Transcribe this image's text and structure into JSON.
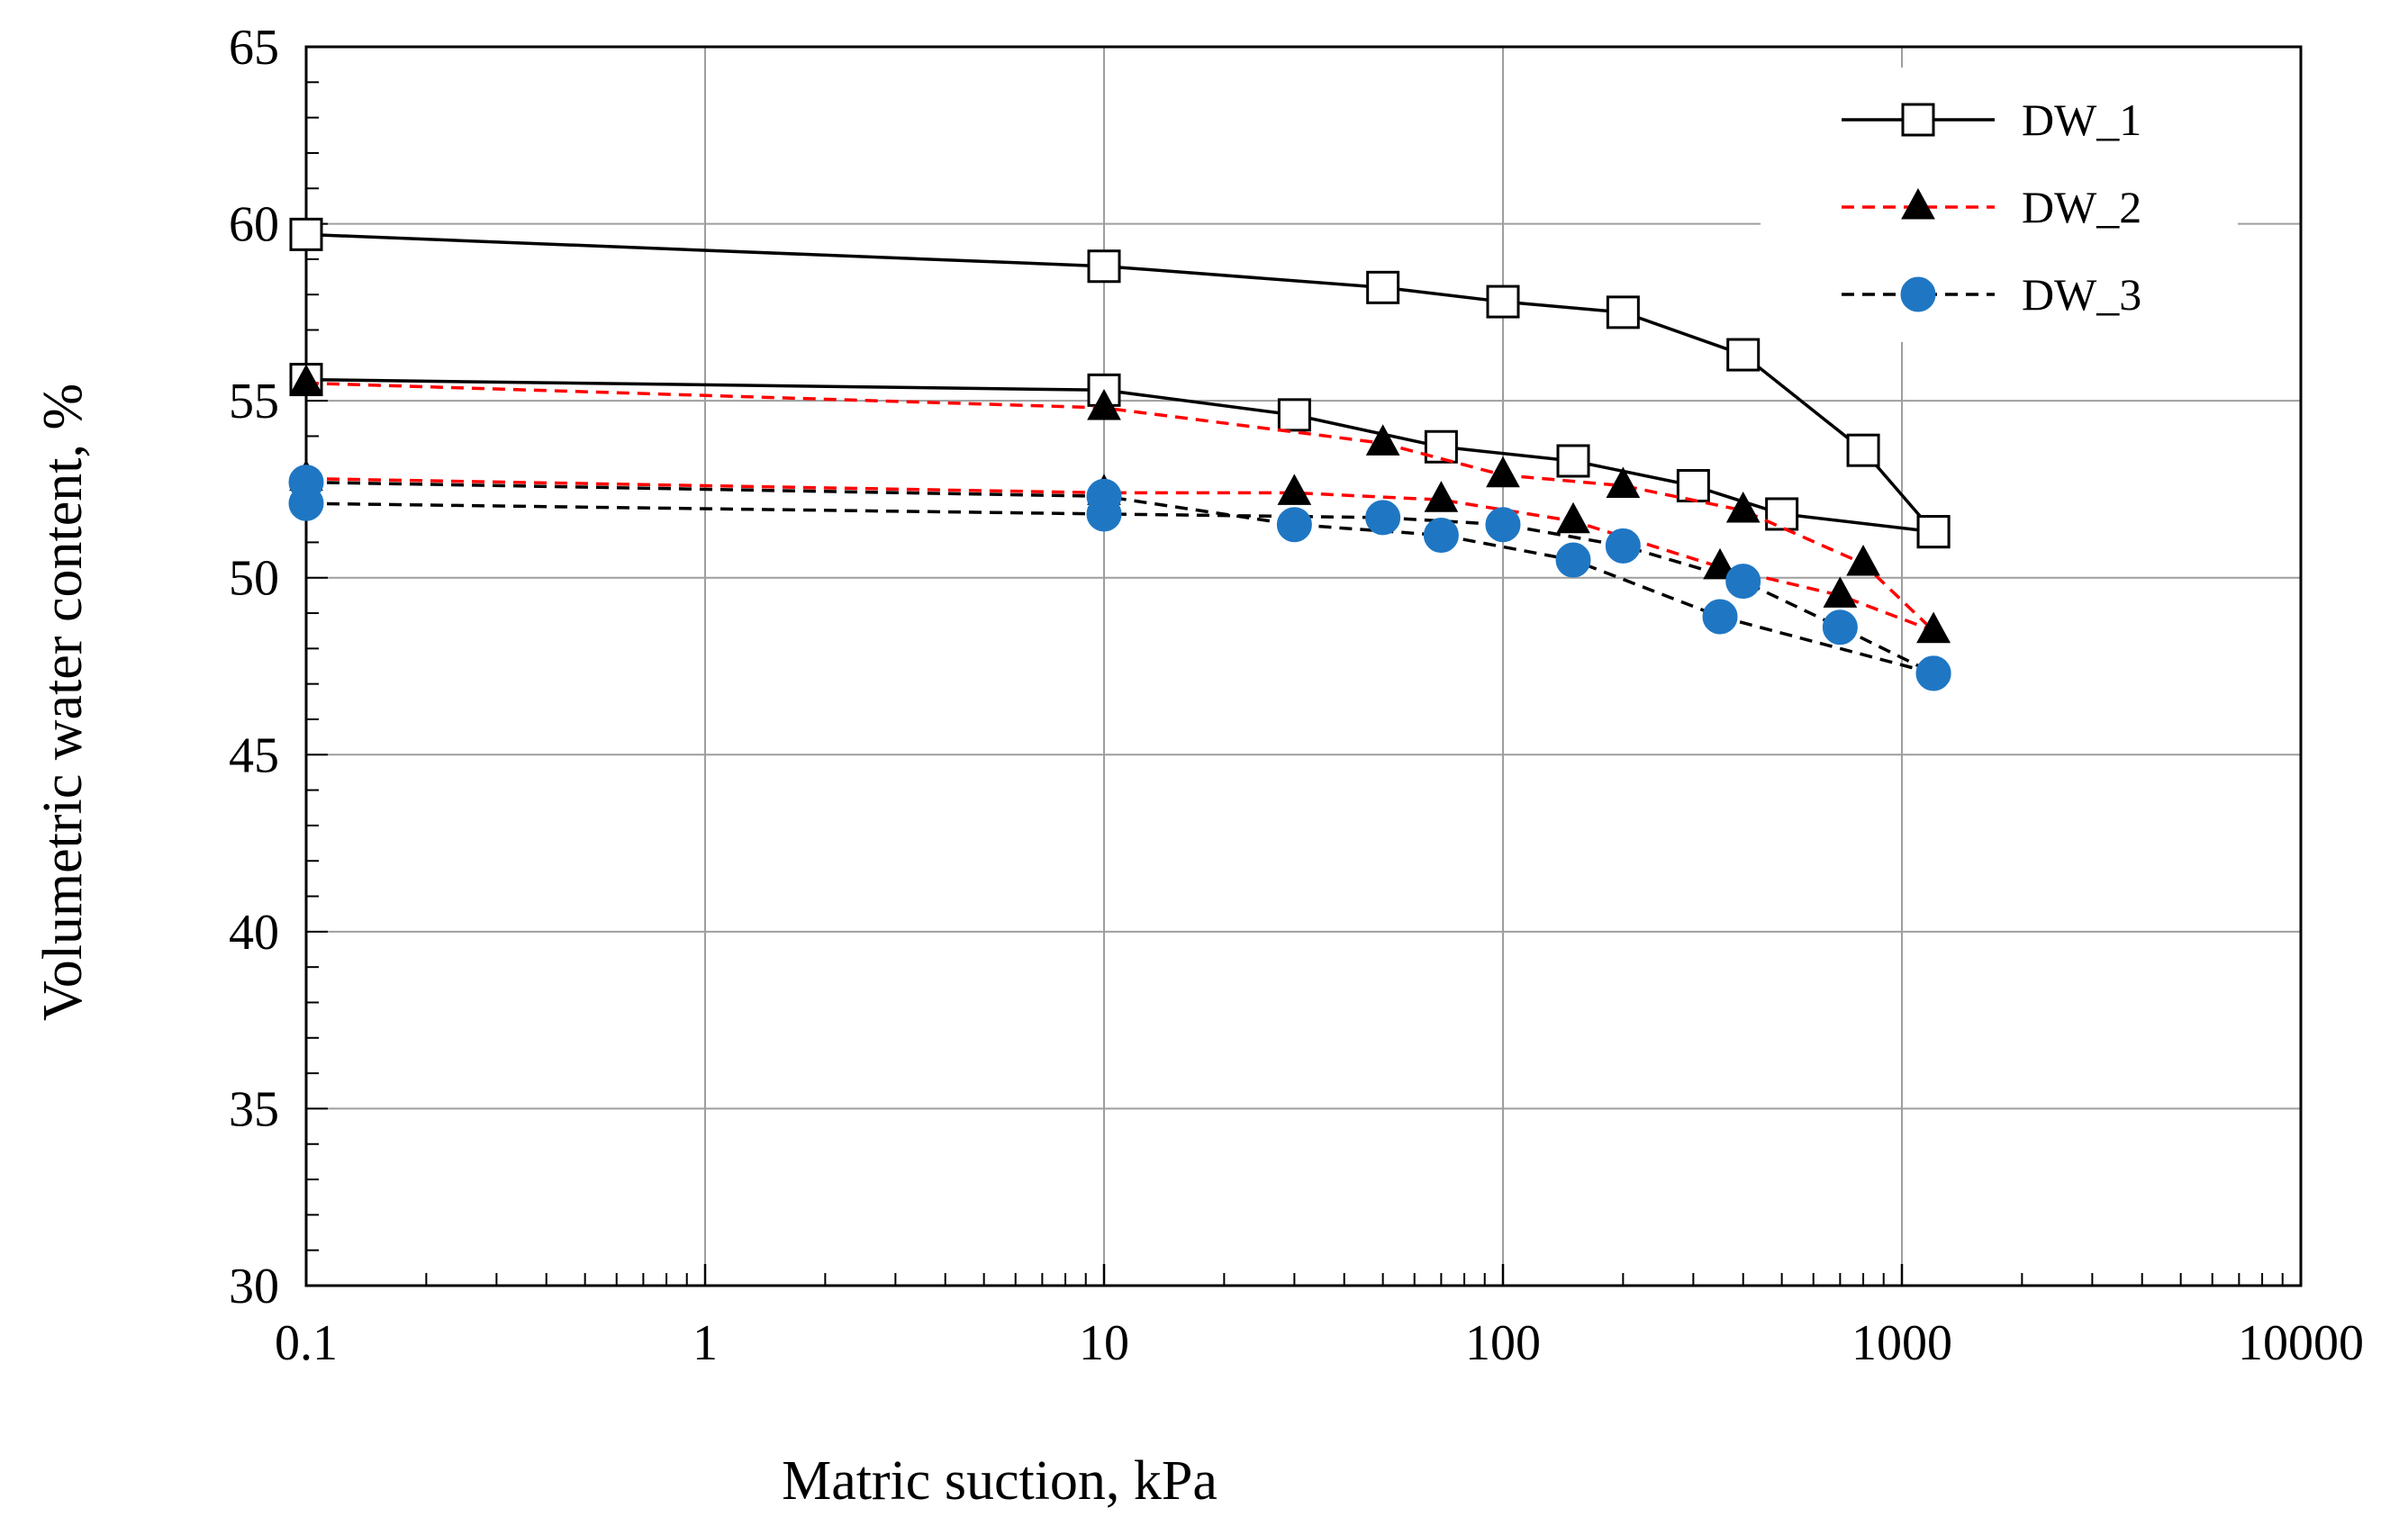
{
  "chart_data": {
    "type": "line",
    "title": "",
    "xlabel": "Matric suction, kPa",
    "ylabel": "Volumetric water content, %",
    "x_scale": "log",
    "xlim": [
      0.1,
      10000
    ],
    "ylim": [
      30,
      65
    ],
    "x_ticks": [
      0.1,
      1,
      10,
      100,
      1000,
      10000
    ],
    "x_tick_labels": [
      "0.1",
      "1",
      "10",
      "100",
      "1000",
      "10000"
    ],
    "y_ticks": [
      30,
      35,
      40,
      45,
      50,
      55,
      60,
      65
    ],
    "y_tick_labels": [
      "30",
      "35",
      "40",
      "45",
      "50",
      "55",
      "60",
      "65"
    ],
    "grid": true,
    "legend_position": "top-right",
    "series": [
      {
        "name": "DW_1",
        "color": "#000000",
        "dash": "solid",
        "marker": "open-square",
        "curves": [
          [
            [
              0.1,
              59.7
            ],
            [
              10,
              58.8
            ],
            [
              50,
              58.2
            ],
            [
              100,
              57.8
            ],
            [
              200,
              57.5
            ],
            [
              400,
              56.3
            ],
            [
              800,
              53.6
            ],
            [
              1200,
              51.3
            ]
          ],
          [
            [
              0.1,
              55.6
            ],
            [
              10,
              55.3
            ],
            [
              30,
              54.6
            ],
            [
              70,
              53.7
            ],
            [
              150,
              53.3
            ],
            [
              300,
              52.6
            ],
            [
              500,
              51.8
            ],
            [
              1200,
              51.3
            ]
          ]
        ]
      },
      {
        "name": "DW_2",
        "color": "#ff0000",
        "marker_color": "#000000",
        "dash": "dashed",
        "marker": "filled-triangle",
        "curves": [
          [
            [
              0.1,
              55.5
            ],
            [
              10,
              54.8
            ],
            [
              50,
              53.8
            ],
            [
              100,
              52.9
            ],
            [
              200,
              52.6
            ],
            [
              400,
              51.9
            ],
            [
              800,
              50.4
            ],
            [
              1200,
              48.5
            ]
          ],
          [
            [
              0.1,
              52.8
            ],
            [
              10,
              52.4
            ],
            [
              30,
              52.4
            ],
            [
              70,
              52.2
            ],
            [
              150,
              51.6
            ],
            [
              350,
              50.3
            ],
            [
              700,
              49.5
            ],
            [
              1200,
              48.5
            ]
          ]
        ]
      },
      {
        "name": "DW_3",
        "color": "#000000",
        "marker_color": "#1f77c4",
        "dash": "dashed",
        "marker": "filled-circle",
        "curves": [
          [
            [
              0.1,
              52.1
            ],
            [
              10,
              51.8
            ],
            [
              50,
              51.7
            ],
            [
              100,
              51.5
            ],
            [
              200,
              50.9
            ],
            [
              400,
              49.9
            ],
            [
              700,
              48.6
            ],
            [
              1200,
              47.3
            ]
          ],
          [
            [
              0.1,
              52.7
            ],
            [
              10,
              52.3
            ],
            [
              30,
              51.5
            ],
            [
              70,
              51.2
            ],
            [
              150,
              50.5
            ],
            [
              350,
              48.9
            ],
            [
              1200,
              47.3
            ]
          ]
        ]
      }
    ]
  }
}
